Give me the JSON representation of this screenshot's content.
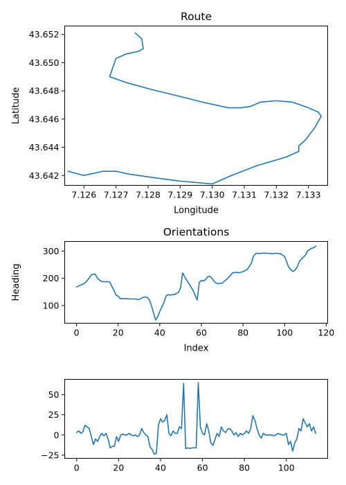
{
  "chart_data": [
    {
      "type": "line",
      "title": "Route",
      "xlabel": "Longitude",
      "ylabel": "Latitude",
      "xlim": [
        7.1254,
        7.1336
      ],
      "ylim": [
        43.6413,
        43.6526
      ],
      "xticks": [
        7.126,
        7.127,
        7.128,
        7.129,
        7.13,
        7.131,
        7.132,
        7.133
      ],
      "xtick_labels": [
        "7.126",
        "7.127",
        "7.128",
        "7.129",
        "7.130",
        "7.131",
        "7.132",
        "7.133"
      ],
      "yticks": [
        43.642,
        43.644,
        43.646,
        43.648,
        43.65,
        43.652
      ],
      "ytick_labels": [
        "43.642",
        "43.644",
        "43.646",
        "43.648",
        "43.650",
        "43.652"
      ],
      "grid": false,
      "series": [
        {
          "x": [
            7.1276,
            7.1278,
            7.12785,
            7.1277,
            7.1275,
            7.1273,
            7.127,
            7.1268,
            7.1273,
            7.1281,
            7.129,
            7.1297,
            7.1305,
            7.1309,
            7.1312,
            7.1315,
            7.132,
            7.1325,
            7.133,
            7.1333,
            7.1334,
            7.1332,
            7.1329,
            7.1327,
            7.1327,
            7.1323,
            7.1314,
            7.1306,
            7.13,
            7.129,
            7.128,
            7.1274,
            7.127,
            7.1266,
            7.126,
            7.1255
          ],
          "y": [
            43.6521,
            43.6517,
            43.651,
            43.6508,
            43.6507,
            43.6506,
            43.6503,
            43.649,
            43.6486,
            43.6481,
            43.6476,
            43.6472,
            43.6468,
            43.6468,
            43.6469,
            43.6472,
            43.6473,
            43.6472,
            43.6468,
            43.6465,
            43.6462,
            43.6454,
            43.6445,
            43.6441,
            43.6437,
            43.6433,
            43.6427,
            43.642,
            43.6414,
            43.6416,
            43.6419,
            43.6421,
            43.6423,
            43.6423,
            43.642,
            43.6423
          ]
        }
      ]
    },
    {
      "type": "line",
      "title": "Orientations",
      "xlabel": "Index",
      "ylabel": "Heading",
      "xlim": [
        -5.7,
        120.7
      ],
      "ylim": [
        35,
        335
      ],
      "xticks": [
        0,
        20,
        40,
        60,
        80,
        100,
        120
      ],
      "xtick_labels": [
        "0",
        "20",
        "40",
        "60",
        "80",
        "100",
        "120"
      ],
      "yticks": [
        100,
        200,
        300
      ],
      "ytick_labels": [
        "100",
        "200",
        "300"
      ],
      "grid": false,
      "series": [
        {
          "x": [
            0,
            2,
            4,
            6,
            7,
            8,
            9,
            10,
            12,
            14,
            15,
            16,
            17,
            18,
            19,
            20,
            21,
            22,
            24,
            26,
            28,
            30,
            32,
            33,
            34,
            35,
            36,
            37,
            38,
            39,
            40,
            41,
            42,
            43,
            44,
            45,
            46,
            47,
            48,
            49,
            50,
            51,
            52,
            54,
            56,
            58,
            59,
            60,
            61,
            62,
            63,
            64,
            65,
            66,
            67,
            68,
            70,
            72,
            74,
            75,
            76,
            77,
            78,
            80,
            82,
            84,
            85,
            86,
            87,
            88,
            89,
            90,
            92,
            94,
            96,
            98,
            100,
            101,
            102,
            103,
            104,
            105,
            106,
            107,
            108,
            110,
            111,
            112,
            113,
            114,
            115
          ],
          "y": [
            168,
            175,
            182,
            200,
            212,
            215,
            215,
            200,
            188,
            187,
            188,
            185,
            170,
            155,
            138,
            135,
            125,
            125,
            125,
            124,
            124,
            122,
            130,
            131,
            130,
            120,
            100,
            72,
            47,
            58,
            78,
            95,
            110,
            135,
            140,
            138,
            140,
            140,
            145,
            148,
            165,
            220,
            205,
            180,
            155,
            120,
            185,
            192,
            190,
            195,
            205,
            208,
            200,
            190,
            183,
            180,
            182,
            195,
            210,
            220,
            221,
            222,
            220,
            224,
            232,
            255,
            280,
            290,
            292,
            290,
            292,
            292,
            292,
            290,
            292,
            290,
            280,
            260,
            240,
            232,
            225,
            230,
            240,
            260,
            270,
            285,
            300,
            305,
            310,
            312,
            318
          ]
        }
      ]
    },
    {
      "type": "line",
      "title": "",
      "xlabel": "",
      "ylabel": "",
      "xlim": [
        -5.7,
        119.7
      ],
      "ylim": [
        -29,
        69
      ],
      "xticks": [
        0,
        20,
        40,
        60,
        80,
        100
      ],
      "xtick_labels": [
        "0",
        "20",
        "40",
        "60",
        "80",
        "100"
      ],
      "yticks": [
        -25,
        0,
        25,
        50
      ],
      "ytick_labels": [
        "−25",
        "0",
        "25",
        "50"
      ],
      "grid": false,
      "series": [
        {
          "x": [
            0,
            1,
            2,
            3,
            4,
            5,
            6,
            7,
            8,
            9,
            10,
            11,
            12,
            13,
            14,
            15,
            16,
            17,
            18,
            19,
            20,
            21,
            22,
            23,
            24,
            25,
            26,
            27,
            28,
            29,
            30,
            31,
            32,
            33,
            34,
            35,
            36,
            37,
            38,
            39,
            40,
            41,
            42,
            43,
            44,
            45,
            46,
            47,
            48,
            49,
            50,
            51,
            52,
            53,
            54,
            55,
            56,
            57,
            58,
            59,
            60,
            61,
            62,
            63,
            64,
            65,
            66,
            67,
            68,
            69,
            70,
            71,
            72,
            73,
            74,
            75,
            76,
            77,
            78,
            79,
            80,
            81,
            82,
            83,
            84,
            85,
            86,
            87,
            88,
            89,
            90,
            91,
            92,
            93,
            94,
            95,
            96,
            97,
            98,
            99,
            100,
            101,
            102,
            103,
            104,
            105,
            106,
            107,
            108,
            109,
            110,
            111,
            112,
            113,
            114
          ],
          "y": [
            3,
            5,
            2,
            4,
            12,
            10,
            8,
            -2,
            -12,
            -5,
            -8,
            -2,
            2,
            -1,
            2,
            -5,
            -16,
            -14,
            -14,
            -2,
            -8,
            0,
            1,
            0,
            0,
            2,
            0,
            -1,
            0,
            -2,
            0,
            8,
            3,
            0,
            -2,
            -15,
            -18,
            -24,
            -23,
            12,
            20,
            16,
            18,
            25,
            2,
            -1,
            5,
            2,
            2,
            10,
            8,
            64,
            -17,
            -16,
            -17,
            -16,
            -16,
            -16,
            65,
            10,
            2,
            0,
            14,
            5,
            -10,
            -13,
            -5,
            2,
            -2,
            10,
            5,
            3,
            7,
            8,
            5,
            0,
            3,
            -2,
            2,
            0,
            2,
            5,
            2,
            8,
            24,
            18,
            8,
            0,
            -4,
            2,
            0,
            0,
            0,
            0,
            -1,
            0,
            2,
            1,
            0,
            0,
            2,
            -12,
            -8,
            -20,
            -10,
            -5,
            8,
            5,
            20,
            15,
            10,
            14,
            5,
            10,
            2
          ]
        }
      ]
    }
  ]
}
